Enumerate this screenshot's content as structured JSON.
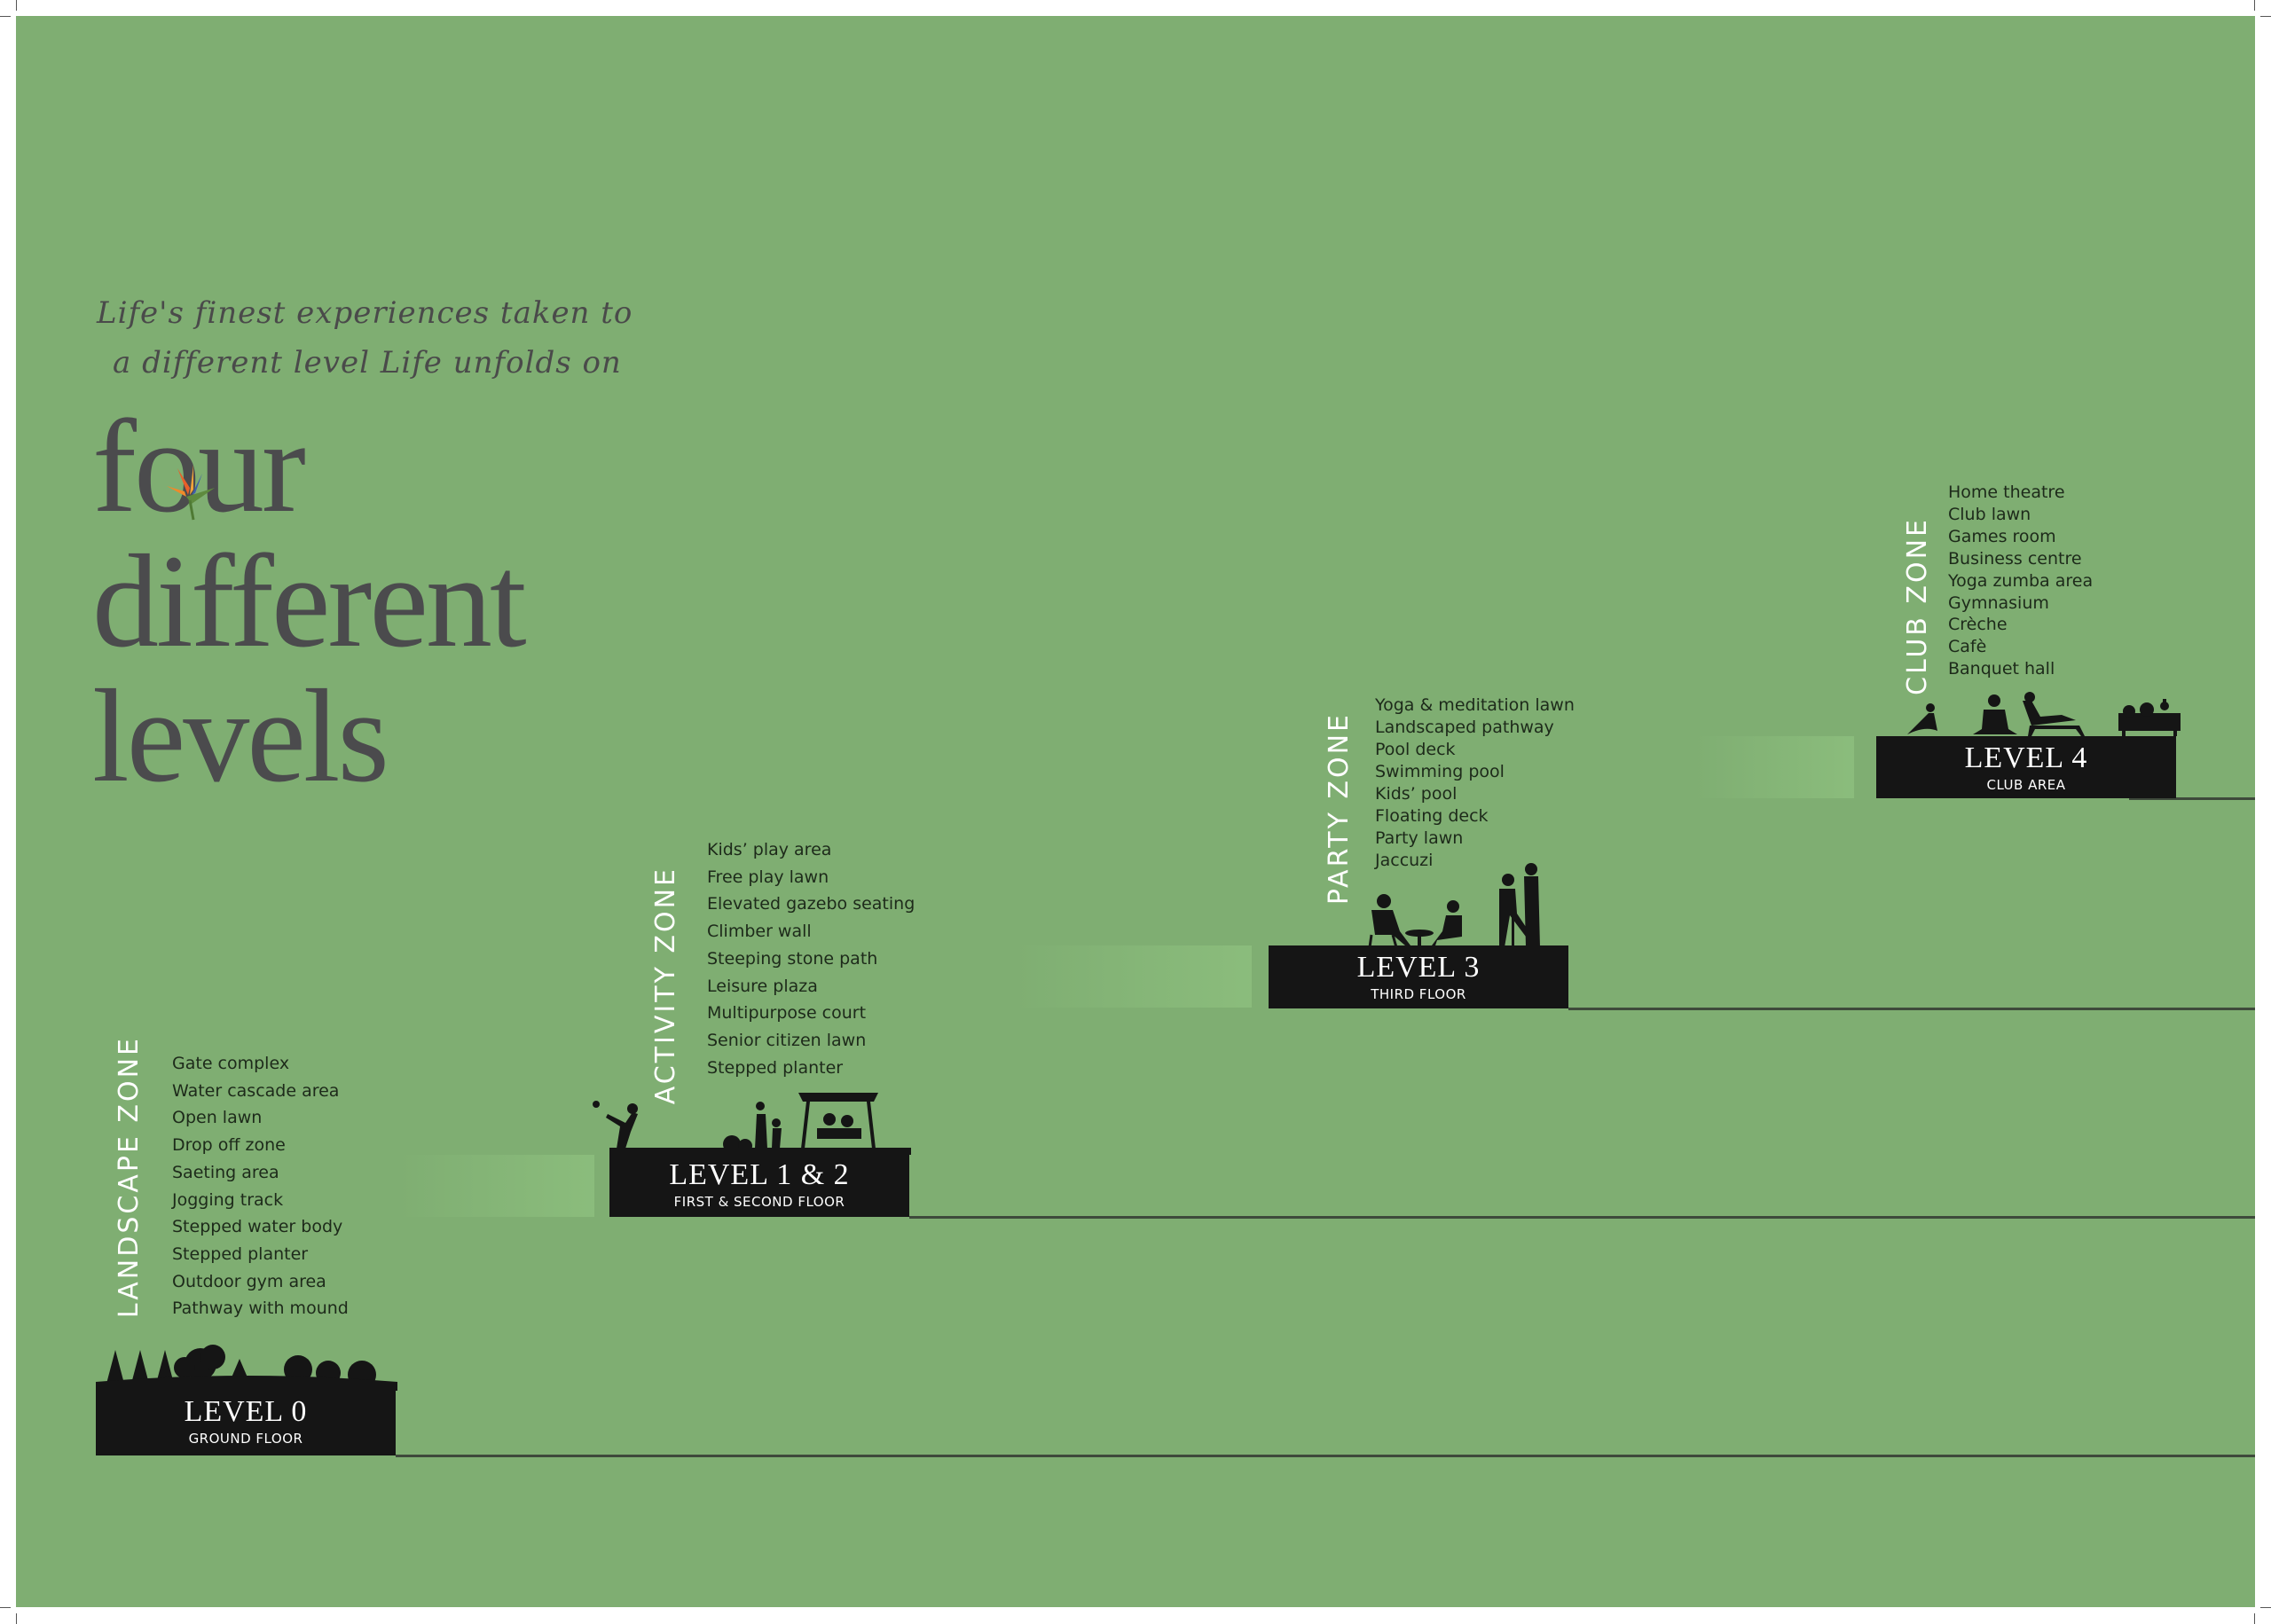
{
  "colors": {
    "background": "#7fae72",
    "text_dark": "#4b4b4d",
    "label_box": "#151515",
    "zone_label": "#ffffff"
  },
  "tagline": {
    "line1": "Life's finest experiences taken to",
    "line2": "a different level Life unfolds on"
  },
  "title": {
    "line1": "four",
    "line2": "different",
    "line3": "levels"
  },
  "levels": [
    {
      "zone": "LANDSCAPE ZONE",
      "level": "LEVEL 0",
      "floor": "GROUND FLOOR",
      "icon": "trees-silhouette-icon",
      "items": [
        "Gate complex",
        "Water cascade area",
        "Open lawn",
        "Drop off zone",
        "Saeting area",
        "Jogging track",
        "Stepped water body",
        "Stepped planter",
        "Outdoor gym area",
        "Pathway with mound"
      ]
    },
    {
      "zone": "ACTIVITY ZONE",
      "level": "LEVEL 1 & 2",
      "floor": "FIRST & SECOND FLOOR",
      "icon": "playground-silhouette-icon",
      "items": [
        "Kids’ play area",
        "Free play lawn",
        "Elevated gazebo seating",
        "Climber wall",
        "Steeping stone path",
        "Leisure plaza",
        "Multipurpose court",
        "Senior citizen lawn",
        "Stepped planter"
      ]
    },
    {
      "zone": "PARTY ZONE",
      "level": "LEVEL 3",
      "floor": "THIRD  FLOOR",
      "icon": "party-silhouette-icon",
      "items": [
        "Yoga & meditation lawn",
        "Landscaped pathway",
        "Pool deck",
        "Swimming pool",
        "Kids’ pool",
        "Floating deck",
        "Party lawn",
        "Jaccuzi"
      ]
    },
    {
      "zone": "CLUB ZONE",
      "level": "LEVEL 4",
      "floor": "CLUB AREA",
      "icon": "club-silhouette-icon",
      "items": [
        "Home theatre",
        "Club lawn",
        "Games room",
        "Business centre",
        "Yoga zumba area",
        "Gymnasium",
        "Crèche",
        "Cafè",
        "Banquet hall"
      ]
    }
  ]
}
